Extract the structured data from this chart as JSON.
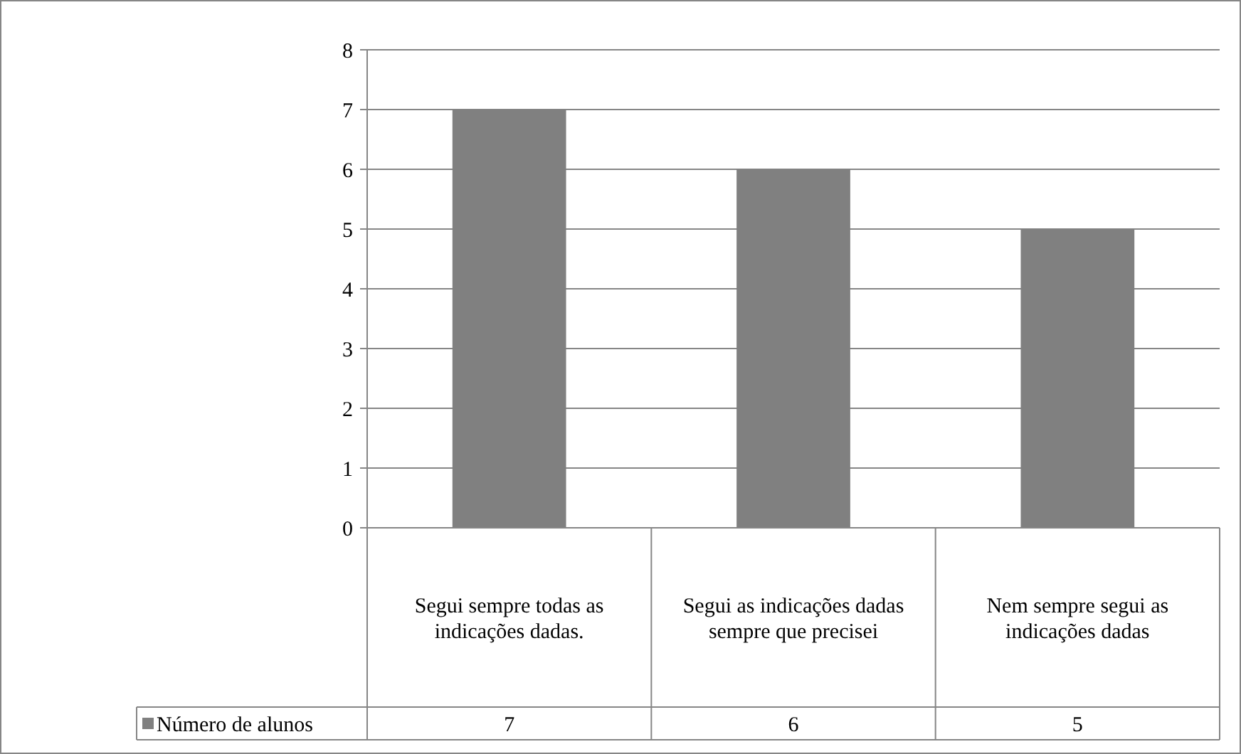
{
  "chart_data": {
    "type": "bar",
    "categories": [
      "Segui sempre todas as indicações dadas.",
      "Segui as indicações dadas sempre que precisei",
      "Nem sempre segui as indicações dadas"
    ],
    "series": [
      {
        "name": "Número de alunos",
        "color": "#808080",
        "values": [
          7,
          6,
          5
        ]
      }
    ],
    "ylim": [
      0,
      8
    ],
    "yticks": [
      0,
      1,
      2,
      3,
      4,
      5,
      6,
      7,
      8
    ],
    "grid": "y",
    "legend": "bottom left",
    "data_labels": true
  }
}
